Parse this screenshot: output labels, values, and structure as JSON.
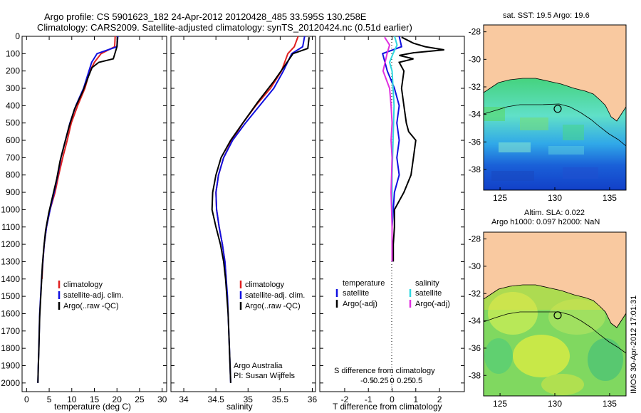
{
  "header": {
    "line1": "Argo profile: CS 5901623_182 24-Apr-2012 20120428_485 33.595S 130.258E",
    "line2": "Climatology: CARS2009. Satellite-adjusted climatology: synTS_20120424.nc (0.51d earlier)"
  },
  "colors": {
    "climatology": "#e02020",
    "satellite": "#1010e0",
    "argo": "#000000",
    "sal_satellite": "#30d8e0",
    "sal_argo": "#e030e0",
    "land": "#f9c9a0"
  },
  "chart_data": [
    {
      "type": "line",
      "name": "temperature-profile",
      "xlabel": "temperature (deg C)",
      "ylabel": "",
      "xlim": [
        -1,
        31
      ],
      "ylim": [
        2050,
        0
      ],
      "xticks": [
        0,
        5,
        10,
        15,
        20,
        25,
        30
      ],
      "yticks": [
        0,
        100,
        200,
        300,
        400,
        500,
        600,
        700,
        800,
        900,
        1000,
        1100,
        1200,
        1300,
        1400,
        1500,
        1600,
        1700,
        1800,
        1900,
        2000
      ],
      "legend": [
        "climatology",
        "satellite-adj. clim.",
        "Argo(..raw -QC)"
      ],
      "legend_position": "lower-center",
      "series": [
        {
          "name": "climatology",
          "color": "#e02020",
          "points": [
            [
              19.6,
              0
            ],
            [
              19.5,
              60
            ],
            [
              16.5,
              100
            ],
            [
              15.0,
              150
            ],
            [
              14.0,
              200
            ],
            [
              12.9,
              300
            ],
            [
              11.3,
              400
            ],
            [
              9.9,
              500
            ],
            [
              9.0,
              600
            ],
            [
              8.0,
              700
            ],
            [
              7.1,
              800
            ],
            [
              6.3,
              900
            ],
            [
              5.2,
              1000
            ],
            [
              4.4,
              1100
            ],
            [
              3.9,
              1200
            ],
            [
              3.6,
              1300
            ],
            [
              3.4,
              1400
            ]
          ]
        },
        {
          "name": "satellite-adj. clim.",
          "color": "#1010e0",
          "points": [
            [
              20.2,
              0
            ],
            [
              20.0,
              60
            ],
            [
              15.6,
              100
            ],
            [
              14.4,
              150
            ],
            [
              13.8,
              200
            ],
            [
              12.6,
              300
            ],
            [
              10.9,
              400
            ],
            [
              9.6,
              500
            ],
            [
              8.6,
              600
            ],
            [
              7.6,
              700
            ],
            [
              6.9,
              800
            ],
            [
              6.1,
              900
            ],
            [
              5.2,
              1000
            ],
            [
              4.4,
              1100
            ],
            [
              3.9,
              1200
            ],
            [
              3.6,
              1300
            ],
            [
              3.3,
              1400
            ],
            [
              3.1,
              1500
            ],
            [
              2.9,
              1600
            ],
            [
              2.8,
              1700
            ],
            [
              2.7,
              1800
            ],
            [
              2.6,
              1900
            ],
            [
              2.5,
              2000
            ]
          ]
        },
        {
          "name": "Argo(..raw -QC)",
          "color": "#000000",
          "points": [
            [
              20.1,
              5
            ],
            [
              20.0,
              60
            ],
            [
              19.2,
              130
            ],
            [
              16.0,
              150
            ],
            [
              14.5,
              180
            ],
            [
              13.7,
              230
            ],
            [
              12.4,
              320
            ],
            [
              10.6,
              420
            ],
            [
              9.4,
              520
            ],
            [
              8.4,
              620
            ],
            [
              7.4,
              720
            ],
            [
              6.7,
              820
            ],
            [
              5.8,
              920
            ],
            [
              4.9,
              1020
            ],
            [
              4.2,
              1120
            ],
            [
              3.8,
              1220
            ],
            [
              3.5,
              1320
            ],
            [
              3.3,
              1420
            ],
            [
              3.1,
              1520
            ],
            [
              2.9,
              1620
            ],
            [
              2.8,
              1720
            ],
            [
              2.7,
              1820
            ],
            [
              2.6,
              1900
            ],
            [
              2.5,
              2000
            ]
          ]
        }
      ]
    },
    {
      "type": "line",
      "name": "salinity-profile",
      "xlabel": "salinity",
      "ylabel": "",
      "xlim": [
        33.8,
        36.05
      ],
      "ylim": [
        2050,
        0
      ],
      "xticks": [
        34,
        34.5,
        35,
        35.5,
        36
      ],
      "legend": [
        "climatology",
        "satellite-adj. clim.",
        "Argo(..raw -QC)"
      ],
      "legend_position": "lower-center",
      "annotation": [
        "Argo Australia",
        "PI: Susan Wijffels"
      ],
      "series": [
        {
          "name": "climatology",
          "color": "#e02020",
          "points": [
            [
              35.78,
              0
            ],
            [
              35.72,
              60
            ],
            [
              35.62,
              100
            ],
            [
              35.52,
              200
            ],
            [
              35.35,
              300
            ],
            [
              35.12,
              400
            ],
            [
              34.92,
              500
            ],
            [
              34.75,
              600
            ],
            [
              34.62,
              700
            ],
            [
              34.54,
              800
            ],
            [
              34.5,
              900
            ],
            [
              34.51,
              1000
            ],
            [
              34.55,
              1100
            ],
            [
              34.6,
              1200
            ],
            [
              34.64,
              1300
            ],
            [
              34.66,
              1400
            ]
          ]
        },
        {
          "name": "satellite-adj. clim.",
          "color": "#1010e0",
          "points": [
            [
              35.88,
              0
            ],
            [
              35.85,
              60
            ],
            [
              35.68,
              100
            ],
            [
              35.55,
              200
            ],
            [
              35.4,
              300
            ],
            [
              35.18,
              400
            ],
            [
              34.96,
              500
            ],
            [
              34.76,
              600
            ],
            [
              34.62,
              700
            ],
            [
              34.54,
              800
            ],
            [
              34.5,
              900
            ],
            [
              34.51,
              1000
            ],
            [
              34.55,
              1100
            ],
            [
              34.6,
              1200
            ],
            [
              34.64,
              1300
            ],
            [
              34.66,
              1400
            ],
            [
              34.68,
              1500
            ],
            [
              34.69,
              1600
            ],
            [
              34.7,
              1700
            ],
            [
              34.71,
              1800
            ],
            [
              34.72,
              1900
            ],
            [
              34.73,
              2000
            ]
          ]
        },
        {
          "name": "Argo(..raw -QC)",
          "color": "#000000",
          "points": [
            [
              35.95,
              5
            ],
            [
              35.93,
              70
            ],
            [
              35.7,
              100
            ],
            [
              35.57,
              170
            ],
            [
              35.4,
              260
            ],
            [
              35.15,
              380
            ],
            [
              34.92,
              500
            ],
            [
              34.73,
              600
            ],
            [
              34.58,
              700
            ],
            [
              34.5,
              800
            ],
            [
              34.45,
              900
            ],
            [
              34.44,
              1000
            ],
            [
              34.5,
              1100
            ],
            [
              34.57,
              1200
            ],
            [
              34.62,
              1300
            ],
            [
              34.65,
              1400
            ],
            [
              34.67,
              1500
            ],
            [
              34.69,
              1600
            ],
            [
              34.7,
              1700
            ],
            [
              34.71,
              1800
            ],
            [
              34.72,
              1900
            ],
            [
              34.73,
              2000
            ]
          ]
        }
      ]
    },
    {
      "type": "line",
      "name": "difference-from-climatology",
      "xlabel_top": "S difference from climatology",
      "xlabel": "T difference from climatology",
      "xticks_T": [
        -2,
        -1,
        0,
        1,
        2
      ],
      "xticks_S": [
        -0.5,
        -0.25,
        0,
        0.25,
        0.5
      ],
      "xticks_S_labels": [
        "-0.5",
        "-0.25",
        "0",
        "0.25",
        "0.5"
      ],
      "xlim_T": [
        -3.05,
        3.05
      ],
      "ylim": [
        2050,
        0
      ],
      "legend_headers": [
        "temperature",
        "salinity"
      ],
      "legend_T": [
        "satellite",
        "Argo(-adj)"
      ],
      "legend_S": [
        "satellite",
        "Argo(-adj)"
      ],
      "series": [
        {
          "name": "T satellite",
          "color": "#1010e0",
          "points": [
            [
              0.3,
              0
            ],
            [
              0.4,
              60
            ],
            [
              -0.4,
              100
            ],
            [
              -0.3,
              150
            ],
            [
              -0.2,
              200
            ],
            [
              0.1,
              300
            ],
            [
              0.3,
              400
            ],
            [
              0.2,
              500
            ],
            [
              0.3,
              600
            ],
            [
              0.2,
              700
            ],
            [
              0.3,
              800
            ],
            [
              0.1,
              900
            ],
            [
              0.05,
              1000
            ],
            [
              0.0,
              1100
            ],
            [
              0.0,
              1200
            ],
            [
              0.0,
              1300
            ]
          ]
        },
        {
          "name": "T Argo(-adj)",
          "color": "#000000",
          "points": [
            [
              0.4,
              5
            ],
            [
              0.9,
              40
            ],
            [
              1.4,
              60
            ],
            [
              2.2,
              78
            ],
            [
              0.9,
              95
            ],
            [
              0.3,
              110
            ],
            [
              0.9,
              130
            ],
            [
              0.3,
              150
            ],
            [
              0.5,
              200
            ],
            [
              0.4,
              300
            ],
            [
              0.5,
              400
            ],
            [
              0.6,
              500
            ],
            [
              0.7,
              550
            ],
            [
              1.0,
              600
            ],
            [
              0.9,
              700
            ],
            [
              0.8,
              800
            ],
            [
              0.5,
              900
            ],
            [
              0.1,
              1000
            ],
            [
              0.1,
              1100
            ],
            [
              0.05,
              1200
            ],
            [
              0.05,
              1300
            ]
          ]
        },
        {
          "name": "S satellite",
          "color": "#30d8e0",
          "points": [
            [
              0.05,
              0
            ],
            [
              0.1,
              50
            ],
            [
              0.02,
              100
            ],
            [
              -0.05,
              150
            ],
            [
              0.0,
              200
            ],
            [
              0.02,
              300
            ],
            [
              0.04,
              400
            ],
            [
              0.03,
              500
            ],
            [
              0.02,
              600
            ],
            [
              0.01,
              700
            ],
            [
              0.0,
              800
            ],
            [
              0.0,
              900
            ],
            [
              0.0,
              1000
            ],
            [
              0.0,
              1100
            ],
            [
              0.0,
              1200
            ],
            [
              0.0,
              1300
            ]
          ]
        },
        {
          "name": "S Argo(-adj)",
          "color": "#e030e0",
          "points": [
            [
              -0.15,
              5
            ],
            [
              -0.05,
              50
            ],
            [
              -0.1,
              100
            ],
            [
              -0.18,
              200
            ],
            [
              -0.05,
              300
            ],
            [
              -0.02,
              400
            ],
            [
              0.0,
              500
            ],
            [
              -0.02,
              600
            ],
            [
              0.0,
              700
            ],
            [
              -0.01,
              800
            ],
            [
              -0.02,
              900
            ],
            [
              -0.01,
              1000
            ],
            [
              0.0,
              1100
            ],
            [
              0.0,
              1200
            ],
            [
              0.0,
              1300
            ]
          ]
        }
      ]
    },
    {
      "type": "heatmap",
      "name": "sst-map",
      "title": "sat. SST: 19.5 Argo: 19.6",
      "xlim": [
        123.5,
        136.5
      ],
      "ylim": [
        -39.5,
        -27.5
      ],
      "xticks": [
        125,
        130,
        135
      ],
      "yticks": [
        -28,
        -30,
        -32,
        -34,
        -36,
        -38
      ],
      "marker": [
        130.258,
        -33.595
      ]
    },
    {
      "type": "heatmap",
      "name": "sla-map",
      "title": "Altim. SLA: 0.022",
      "subtitle": "Argo h1000: 0.097 h2000: NaN",
      "xlim": [
        123.5,
        136.5
      ],
      "ylim": [
        -39.5,
        -27.5
      ],
      "xticks": [
        125,
        130,
        135
      ],
      "yticks": [
        -28,
        -30,
        -32,
        -34,
        -36,
        -38
      ],
      "marker": [
        130.258,
        -33.595
      ]
    }
  ],
  "footer": {
    "stamp": "IMOS 30-Apr-2012 17:01:31"
  }
}
